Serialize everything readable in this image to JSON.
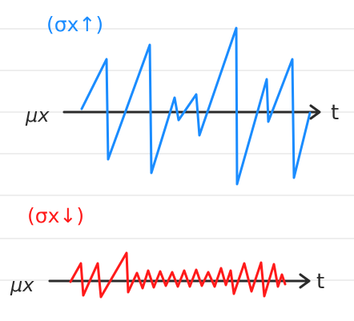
{
  "colors": {
    "background": "#ffffff",
    "ruled_line": "#d9d9d9",
    "axis": "#2b2b2b",
    "high_volatility": "#1a8cff",
    "low_volatility": "#ff1a1a"
  },
  "top_panel": {
    "title": "(σx↑)",
    "axis_label": "μx",
    "time_label": "t"
  },
  "bottom_panel": {
    "title": "(σx↓)",
    "axis_label": "μx",
    "time_label": "t"
  }
}
